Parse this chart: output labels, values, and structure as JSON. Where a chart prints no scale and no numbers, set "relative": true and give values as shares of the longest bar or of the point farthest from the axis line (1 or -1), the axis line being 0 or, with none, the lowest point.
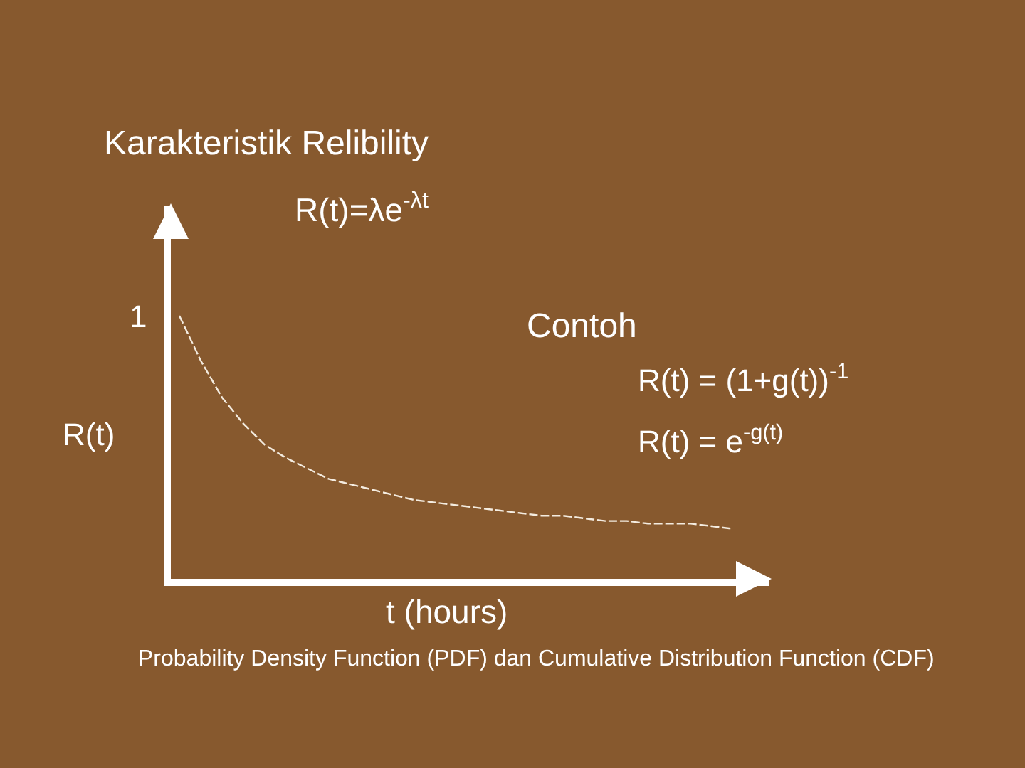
{
  "chart_data": {
    "type": "line",
    "title": "Karakteristik Relibility",
    "subtitle": "R(t)=λe$^{-λt}$",
    "xlabel": "t (hours)",
    "ylabel": "R(t)",
    "annotations": [
      "1",
      "Contoh",
      "R(t) = (1+g(t))$^{-1}$",
      "R(t) = e$^{-g(t)}$",
      "Probability Density Function (PDF) dan Cumulative Distribution Function (CDF)"
    ],
    "categories": [
      null,
      null,
      null,
      null,
      null,
      null,
      null,
      null,
      null,
      null,
      null,
      null,
      null,
      null,
      null,
      null,
      null,
      null,
      null,
      null,
      null,
      null,
      null,
      null,
      null,
      null,
      null
    ],
    "relative": true,
    "line_style": "dashed",
    "series": [
      {
        "color": "#f4ece0",
        "values": [
          1.0,
          0.83,
          0.69,
          0.59,
          0.51,
          0.46,
          0.42,
          0.38,
          0.36,
          0.34,
          0.32,
          0.3,
          0.29,
          0.28,
          0.27,
          0.26,
          0.25,
          0.24,
          0.24,
          0.23,
          0.22,
          0.22,
          0.21,
          0.21,
          0.21,
          0.2,
          0.19
        ]
      }
    ]
  }
}
